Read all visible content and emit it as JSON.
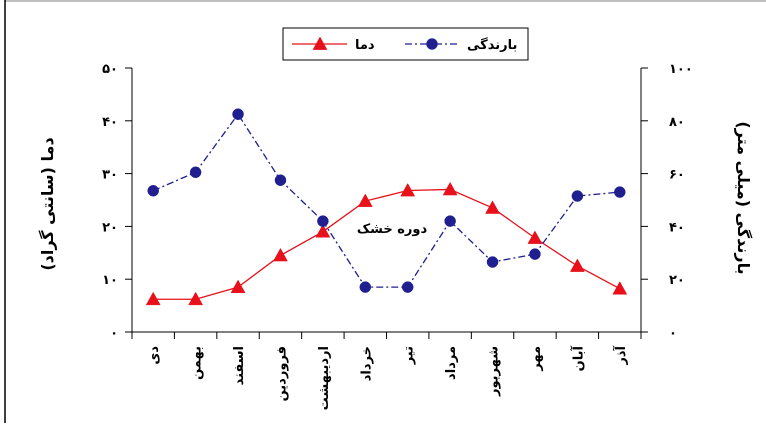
{
  "chart_data": {
    "type": "line",
    "categories": [
      "دی",
      "بهمن",
      "اسفند",
      "فروردین",
      "اردیبهشت",
      "خرداد",
      "تیر",
      "مرداد",
      "شهریور",
      "مهر",
      "آبان",
      "آذر"
    ],
    "series": [
      {
        "name": "دما",
        "axis": "left",
        "color": "#e8101a",
        "marker": "triangle",
        "line_style": "solid",
        "values": [
          6.2,
          6.2,
          8.5,
          14.5,
          19.0,
          24.8,
          26.8,
          27.0,
          23.5,
          17.8,
          12.5,
          8.2
        ]
      },
      {
        "name": "بارندگی",
        "axis": "right",
        "color": "#1f1f8f",
        "marker": "circle",
        "line_style": "dash-dot",
        "values": [
          53.5,
          60.5,
          82.5,
          57.5,
          42.0,
          17.0,
          17.0,
          42.0,
          26.5,
          29.5,
          51.5,
          53.0
        ]
      }
    ],
    "y_left": {
      "label": "دما (سانتی گراد)",
      "ylim": [
        0,
        50
      ],
      "ticks": [
        0,
        10,
        20,
        30,
        40,
        50
      ]
    },
    "y_right": {
      "label": "بارندگی (میلی متر)",
      "ylim": [
        0,
        100
      ],
      "ticks": [
        0,
        20,
        40,
        60,
        80,
        100
      ]
    },
    "annotation": "دوره خشک",
    "legend_placement": "top-center",
    "grid": false
  }
}
